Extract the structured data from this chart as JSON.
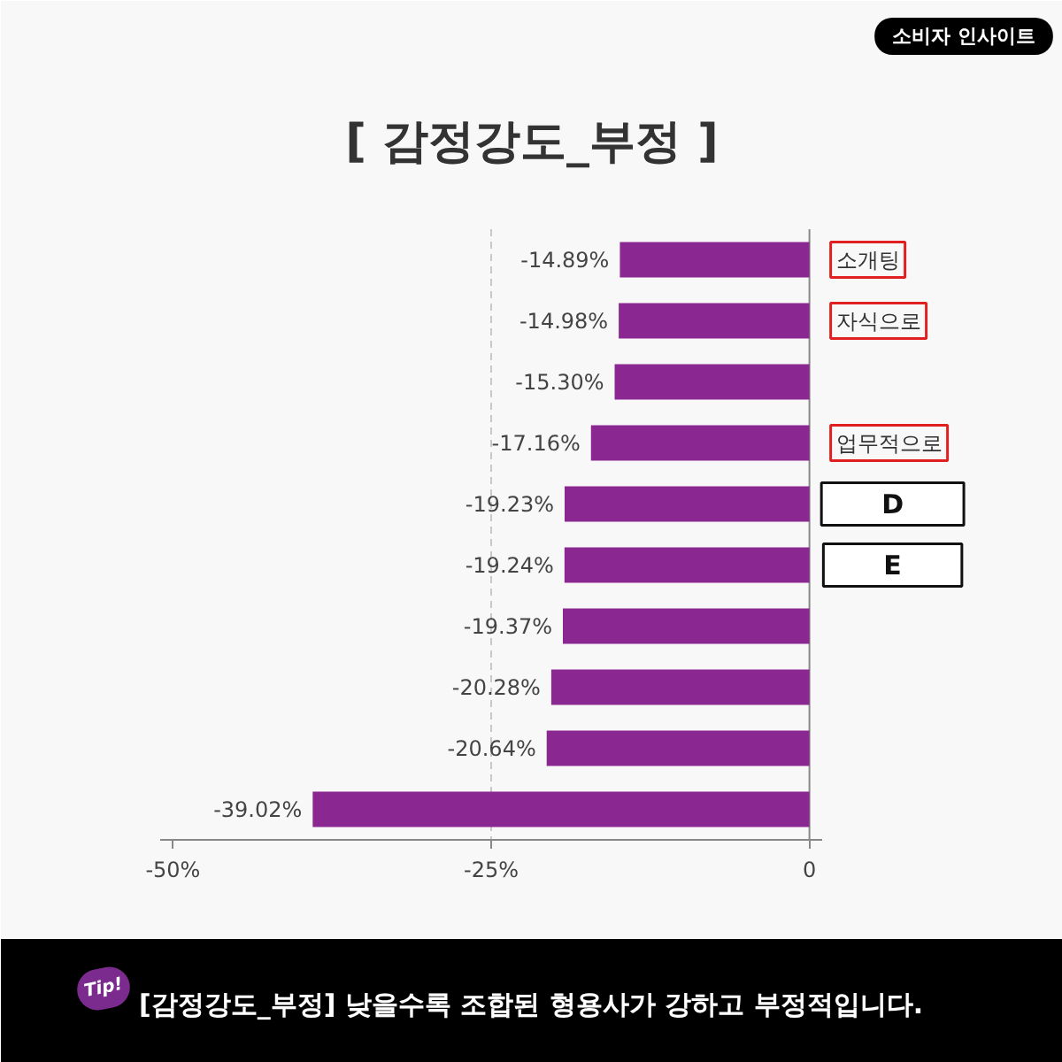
{
  "chart_data": {
    "type": "bar",
    "orientation": "horizontal",
    "title": "[ 감정강도_부정 ]",
    "categories": [
      "소개팅",
      "자식으로",
      null,
      "업무적으로",
      "D",
      "E",
      null,
      null,
      null,
      null
    ],
    "values": [
      -14.89,
      -14.98,
      -15.3,
      -17.16,
      -19.23,
      -19.24,
      -19.37,
      -20.28,
      -20.64,
      -39.02
    ],
    "value_labels": [
      "-14.89%",
      "-14.98%",
      "-15.30%",
      "-17.16%",
      "-19.23%",
      "-19.24%",
      "-19.37%",
      "-20.28%",
      "-20.64%",
      "-39.02%"
    ],
    "color": "#8a2791",
    "xlim": [
      -51,
      1
    ],
    "xticks": [
      {
        "value": -50,
        "label": "-50%"
      },
      {
        "value": -25,
        "label": "-25%"
      },
      0
    ],
    "ref_lines": [
      {
        "axis": "x",
        "value": -25,
        "color": "#c8c8c8",
        "line_style": "dashed"
      }
    ],
    "annotations": [
      "소비자 인사이트",
      "Tip!",
      "[감정강도_부정]  낮을수록 조합된 형용사가 강하고 부정적입니다."
    ]
  }
}
